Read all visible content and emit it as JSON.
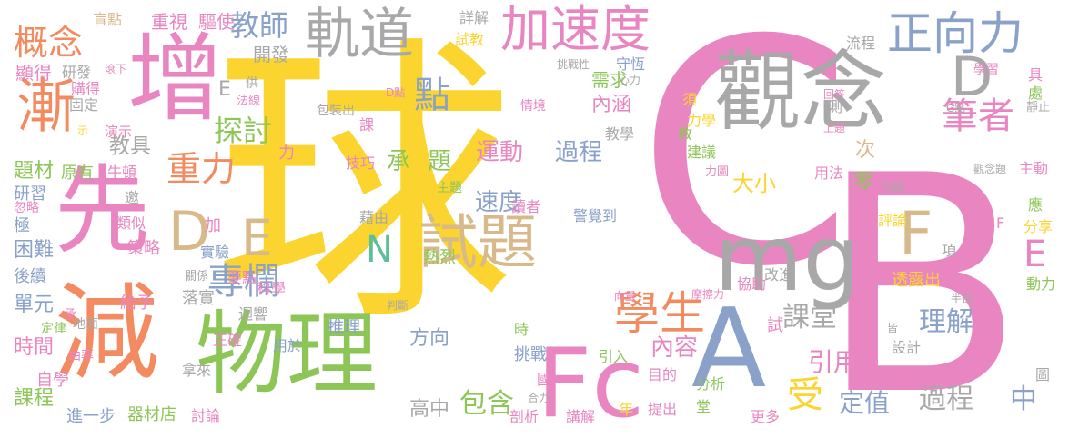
{
  "palette": {
    "pink": "#e986c1",
    "yellow": "#fbd42f",
    "green": "#8cc657",
    "blue": "#8aa1c9",
    "gray": "#a8a8a8",
    "orange": "#f48a5f",
    "tan": "#d8b98a",
    "teal": "#5cbf98"
  },
  "words": [
    {
      "t": "球",
      "c": "yellow"
    },
    {
      "t": "C",
      "c": "pink"
    },
    {
      "t": "B",
      "c": "pink"
    },
    {
      "t": "觀念",
      "c": "gray"
    },
    {
      "t": "增",
      "c": "pink"
    },
    {
      "t": "先",
      "c": "pink"
    },
    {
      "t": "減",
      "c": "orange"
    },
    {
      "t": "物理",
      "c": "green"
    },
    {
      "t": "mg",
      "c": "gray"
    },
    {
      "t": "Fc",
      "c": "pink"
    },
    {
      "t": "A",
      "c": "blue"
    },
    {
      "t": "軌道",
      "c": "gray"
    },
    {
      "t": "加速度",
      "c": "pink"
    },
    {
      "t": "正向力",
      "c": "blue"
    },
    {
      "t": "試題",
      "c": "tan"
    },
    {
      "t": "漸",
      "c": "orange"
    },
    {
      "t": "D",
      "c": "tan"
    },
    {
      "t": "E",
      "c": "tan"
    },
    {
      "t": "D",
      "c": "gray"
    },
    {
      "t": "F",
      "c": "tan"
    },
    {
      "t": "N",
      "c": "teal"
    },
    {
      "t": "學生",
      "c": "orange"
    },
    {
      "t": "專欄",
      "c": "blue"
    },
    {
      "t": "重力",
      "c": "orange"
    },
    {
      "t": "筆者",
      "c": "pink"
    },
    {
      "t": "概念",
      "c": "orange"
    },
    {
      "t": "教師",
      "c": "blue"
    },
    {
      "t": "點",
      "c": "blue"
    },
    {
      "t": "受",
      "c": "yellow"
    },
    {
      "t": "探討",
      "c": "green"
    },
    {
      "t": "理解",
      "c": "blue"
    },
    {
      "t": "課堂",
      "c": "gray"
    },
    {
      "t": "過程",
      "c": "gray"
    },
    {
      "t": "中",
      "c": "blue"
    },
    {
      "t": "定值",
      "c": "blue"
    },
    {
      "t": "包含",
      "c": "green"
    },
    {
      "t": "運動",
      "c": "pink"
    },
    {
      "t": "過程",
      "c": "blue"
    },
    {
      "t": "承",
      "c": "green"
    },
    {
      "t": "題",
      "c": "green"
    },
    {
      "t": "速度",
      "c": "blue"
    },
    {
      "t": "內容",
      "c": "pink"
    },
    {
      "t": "引用",
      "c": "pink"
    },
    {
      "t": "大小",
      "c": "yellow"
    },
    {
      "t": "E",
      "c": "pink"
    },
    {
      "t": "E",
      "c": "gray"
    },
    {
      "t": "教具",
      "c": "gray"
    },
    {
      "t": "題材",
      "c": "green"
    },
    {
      "t": "困難",
      "c": "blue"
    },
    {
      "t": "單元",
      "c": "blue"
    },
    {
      "t": "時間",
      "c": "pink"
    },
    {
      "t": "課程",
      "c": "green"
    },
    {
      "t": "方向",
      "c": "blue"
    },
    {
      "t": "高中",
      "c": "gray"
    },
    {
      "t": "次",
      "c": "tan"
    },
    {
      "t": "零",
      "c": "green"
    },
    {
      "t": "內涵",
      "c": "pink"
    },
    {
      "t": "需求",
      "c": "green"
    },
    {
      "t": "開發",
      "c": "gray"
    },
    {
      "t": "重視",
      "c": "pink"
    },
    {
      "t": "驅使",
      "c": "pink"
    },
    {
      "t": "盲點",
      "c": "tan"
    },
    {
      "t": "顯得",
      "c": "pink"
    },
    {
      "t": "研發",
      "c": "gray"
    },
    {
      "t": "購得",
      "c": "pink"
    },
    {
      "t": "固定",
      "c": "gray"
    },
    {
      "t": "演示",
      "c": "pink"
    },
    {
      "t": "示",
      "c": "yellow"
    },
    {
      "t": "原有",
      "c": "green"
    },
    {
      "t": "牛頓",
      "c": "pink"
    },
    {
      "t": "研習",
      "c": "blue"
    },
    {
      "t": "忽略",
      "c": "pink"
    },
    {
      "t": "極",
      "c": "blue"
    },
    {
      "t": "類似",
      "c": "pink"
    },
    {
      "t": "策略",
      "c": "pink"
    },
    {
      "t": "後續",
      "c": "blue"
    },
    {
      "t": "落實",
      "c": "gray"
    },
    {
      "t": "給予",
      "c": "pink"
    },
    {
      "t": "承",
      "c": "pink"
    },
    {
      "t": "定律",
      "c": "green"
    },
    {
      "t": "地面",
      "c": "gray"
    },
    {
      "t": "曲率",
      "c": "pink"
    },
    {
      "t": "自學",
      "c": "pink"
    },
    {
      "t": "進一步",
      "c": "blue"
    },
    {
      "t": "器材店",
      "c": "green"
    },
    {
      "t": "討論",
      "c": "pink"
    },
    {
      "t": "拿來",
      "c": "gray"
    },
    {
      "t": "講解",
      "c": "pink"
    },
    {
      "t": "剖析",
      "c": "pink"
    },
    {
      "t": "合力",
      "c": "gray"
    },
    {
      "t": "提出",
      "c": "pink"
    },
    {
      "t": "更多",
      "c": "pink"
    },
    {
      "t": "年",
      "c": "yellow"
    },
    {
      "t": "挑戰",
      "c": "blue"
    },
    {
      "t": "國",
      "c": "pink"
    },
    {
      "t": "推理",
      "c": "blue"
    },
    {
      "t": "用於",
      "c": "blue"
    },
    {
      "t": "正確",
      "c": "pink"
    },
    {
      "t": "迴響",
      "c": "gray"
    },
    {
      "t": "科學",
      "c": "pink"
    },
    {
      "t": "要點",
      "c": "pink"
    },
    {
      "t": "實驗",
      "c": "blue"
    },
    {
      "t": "加",
      "c": "pink"
    },
    {
      "t": "關係",
      "c": "gray"
    },
    {
      "t": "邀",
      "c": "gray"
    },
    {
      "t": "力",
      "c": "pink"
    },
    {
      "t": "供",
      "c": "gray"
    },
    {
      "t": "法線",
      "c": "pink"
    },
    {
      "t": "包裝出",
      "c": "gray"
    },
    {
      "t": "課",
      "c": "pink"
    },
    {
      "t": "技巧",
      "c": "pink"
    },
    {
      "t": "主題",
      "c": "green"
    },
    {
      "t": "藉由",
      "c": "gray"
    },
    {
      "t": "讀者",
      "c": "pink"
    },
    {
      "t": "警覺到",
      "c": "blue"
    },
    {
      "t": "教學",
      "c": "gray"
    },
    {
      "t": "情境",
      "c": "pink"
    },
    {
      "t": "挑戰性",
      "c": "gray"
    },
    {
      "t": "守恆",
      "c": "blue"
    },
    {
      "t": "心力",
      "c": "gray"
    },
    {
      "t": "詳解",
      "c": "gray"
    },
    {
      "t": "試教",
      "c": "yellow"
    },
    {
      "t": "熱烈",
      "c": "green"
    },
    {
      "t": "判斷",
      "c": "gray"
    },
    {
      "t": "時",
      "c": "green"
    },
    {
      "t": "引入",
      "c": "green"
    },
    {
      "t": "目的",
      "c": "pink"
    },
    {
      "t": "分析",
      "c": "green"
    },
    {
      "t": "堂",
      "c": "green"
    },
    {
      "t": "向量",
      "c": "pink"
    },
    {
      "t": "摩擦力",
      "c": "pink"
    },
    {
      "t": "協助",
      "c": "pink"
    },
    {
      "t": "改進",
      "c": "gray"
    },
    {
      "t": "透露出",
      "c": "yellow"
    },
    {
      "t": "半徑",
      "c": "gray"
    },
    {
      "t": "動力",
      "c": "green"
    },
    {
      "t": "皆",
      "c": "gray"
    },
    {
      "t": "設計",
      "c": "gray"
    },
    {
      "t": "圖",
      "c": "gray"
    },
    {
      "t": "試",
      "c": "pink"
    },
    {
      "t": "思考",
      "c": "pink"
    },
    {
      "t": "項",
      "c": "gray"
    },
    {
      "t": "分享",
      "c": "yellow"
    },
    {
      "t": "應",
      "c": "green"
    },
    {
      "t": "評論",
      "c": "yellow"
    },
    {
      "t": "切線",
      "c": "gray"
    },
    {
      "t": "主動",
      "c": "pink"
    },
    {
      "t": "觀念題",
      "c": "gray"
    },
    {
      "t": "用法",
      "c": "pink"
    },
    {
      "t": "力圖",
      "c": "pink"
    },
    {
      "t": "建議",
      "c": "green"
    },
    {
      "t": "力學",
      "c": "yellow"
    },
    {
      "t": "教",
      "c": "green"
    },
    {
      "t": "須",
      "c": "yellow"
    },
    {
      "t": "上題",
      "c": "pink"
    },
    {
      "t": "測",
      "c": "gray"
    },
    {
      "t": "G點",
      "c": "gray"
    },
    {
      "t": "靜止",
      "c": "gray"
    },
    {
      "t": "處",
      "c": "green"
    },
    {
      "t": "具",
      "c": "pink"
    },
    {
      "t": "學習",
      "c": "pink"
    },
    {
      "t": "回答",
      "c": "pink"
    },
    {
      "t": "流程",
      "c": "gray"
    },
    {
      "t": "D點",
      "c": "pink"
    },
    {
      "t": "滾下",
      "c": "pink"
    },
    {
      "t": "F",
      "c": "pink"
    }
  ]
}
